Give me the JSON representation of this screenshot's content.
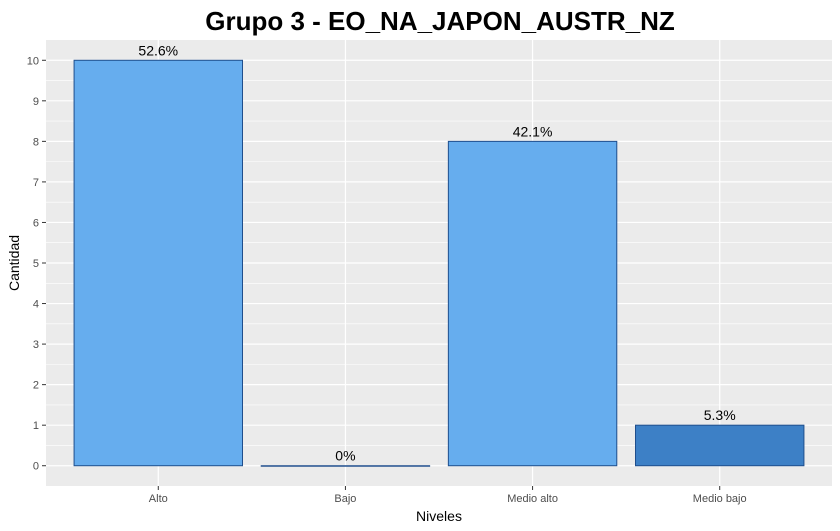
{
  "chart_data": {
    "type": "bar",
    "title": "Grupo 3 - EO_NA_JAPON_AUSTR_NZ",
    "xlabel": "Niveles",
    "ylabel": "Cantidad",
    "categories": [
      "Alto",
      "Bajo",
      "Medio alto",
      "Medio bajo"
    ],
    "values": [
      10,
      0,
      8,
      1
    ],
    "data_labels": [
      "52.6%",
      "0%",
      "42.1%",
      "5.3%"
    ],
    "colors": [
      "#66ADEE",
      "#66ADEE",
      "#66ADEE",
      "#3D80C6"
    ],
    "bar_outline": "#1F4E8C",
    "ylim": [
      -0.5,
      10.5
    ],
    "yticks": [
      0,
      1,
      2,
      3,
      4,
      5,
      6,
      7,
      8,
      9,
      10
    ],
    "panel_background": "#EBEBEB",
    "grid": true,
    "legend": "none"
  }
}
